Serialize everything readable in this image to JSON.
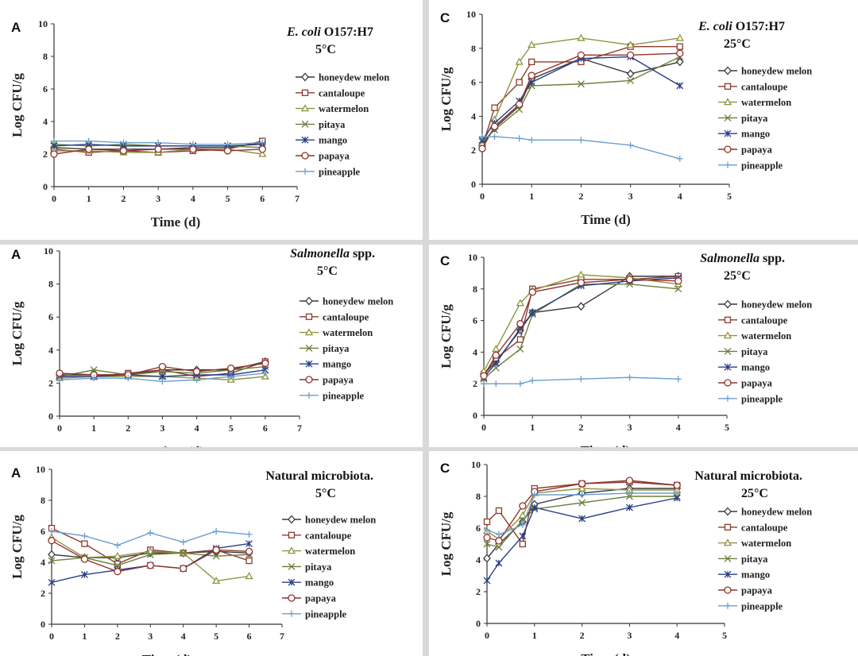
{
  "figure": {
    "legend_entries": [
      "honeydew melon",
      "cantaloupe",
      "watermelon",
      "pitaya",
      "mango",
      "papaya",
      "pineapple"
    ],
    "series_colors": {
      "honeydew melon": "#3a3a3a",
      "cantaloupe": "#8c3b2e",
      "watermelon": "#8f9440",
      "pitaya": "#6a7f3a",
      "mango": "#283f87",
      "papaya": "#92322c",
      "pineapple": "#6b9fcf"
    },
    "series_markers": {
      "honeydew melon": "diamond",
      "cantaloupe": "square",
      "watermelon": "triangle",
      "pitaya": "x",
      "mango": "xbar",
      "papaya": "circle",
      "pineapple": "plus"
    }
  },
  "chart_data": [
    {
      "type": "line",
      "panel_label": "A",
      "title_organism": "E. coli",
      "title_rest": " O157:H7",
      "title_italic": true,
      "title_temp": "5°C",
      "xlabel": "Time (d)",
      "ylabel": "Log CFU/g",
      "xlim": [
        0,
        7
      ],
      "ylim": [
        0,
        10
      ],
      "xticks": [
        0,
        1,
        2,
        3,
        4,
        5,
        6,
        7
      ],
      "yticks": [
        0,
        2,
        4,
        6,
        8,
        10
      ],
      "x": [
        0,
        1,
        2,
        3,
        4,
        5,
        6
      ],
      "series": [
        {
          "name": "honeydew melon",
          "values": [
            2.4,
            2.3,
            2.3,
            2.3,
            2.4,
            2.4,
            2.7
          ]
        },
        {
          "name": "cantaloupe",
          "values": [
            2.3,
            2.1,
            2.2,
            2.1,
            2.2,
            2.3,
            2.8
          ]
        },
        {
          "name": "watermelon",
          "values": [
            2.2,
            2.2,
            2.1,
            2.1,
            2.3,
            2.3,
            2.0
          ]
        },
        {
          "name": "pitaya",
          "values": [
            2.6,
            2.5,
            2.6,
            2.5,
            2.5,
            2.5,
            2.4
          ]
        },
        {
          "name": "mango",
          "values": [
            2.5,
            2.6,
            2.5,
            2.5,
            2.5,
            2.5,
            2.6
          ]
        },
        {
          "name": "papaya",
          "values": [
            2.0,
            2.3,
            2.2,
            2.3,
            2.3,
            2.2,
            2.3
          ]
        },
        {
          "name": "pineapple",
          "values": [
            2.8,
            2.8,
            2.7,
            2.7,
            2.6,
            2.6,
            2.7
          ]
        }
      ]
    },
    {
      "type": "line",
      "panel_label": "C",
      "title_organism": "E. coli",
      "title_rest": " O157:H7",
      "title_italic": true,
      "title_temp": "25°C",
      "xlabel": "Time (d)",
      "ylabel": "Log CFU/g",
      "xlim": [
        0,
        5
      ],
      "ylim": [
        0,
        10
      ],
      "xticks": [
        0,
        1,
        2,
        3,
        4,
        5
      ],
      "yticks": [
        0,
        2,
        4,
        6,
        8,
        10
      ],
      "x": [
        0,
        0.25,
        0.75,
        1,
        2,
        3,
        4
      ],
      "series": [
        {
          "name": "honeydew melon",
          "values": [
            2.3,
            3.3,
            4.6,
            6.2,
            7.4,
            6.5,
            7.2
          ]
        },
        {
          "name": "cantaloupe",
          "values": [
            2.2,
            4.5,
            6.0,
            7.2,
            7.2,
            8.1,
            8.1
          ]
        },
        {
          "name": "watermelon",
          "values": [
            2.4,
            3.8,
            7.2,
            8.2,
            8.6,
            8.2,
            8.6
          ]
        },
        {
          "name": "pitaya",
          "values": [
            2.5,
            3.2,
            4.4,
            5.8,
            5.9,
            6.1,
            7.5
          ]
        },
        {
          "name": "mango",
          "values": [
            2.6,
            3.6,
            4.9,
            6.0,
            7.4,
            7.5,
            5.8
          ]
        },
        {
          "name": "papaya",
          "values": [
            2.1,
            3.4,
            4.7,
            6.4,
            7.6,
            7.6,
            7.7
          ]
        },
        {
          "name": "pineapple",
          "values": [
            2.8,
            2.8,
            2.7,
            2.6,
            2.6,
            2.3,
            1.5
          ]
        }
      ]
    },
    {
      "type": "line",
      "panel_label": "A",
      "title_organism": "Salmonella",
      "title_rest": " spp.",
      "title_italic": true,
      "title_temp": "5°C",
      "xlabel": "Time (d)",
      "ylabel": "Log CFU/g",
      "xlim": [
        0,
        7
      ],
      "ylim": [
        0,
        10
      ],
      "xticks": [
        0,
        1,
        2,
        3,
        4,
        5,
        6,
        7
      ],
      "yticks": [
        0,
        2,
        4,
        6,
        8,
        10
      ],
      "x": [
        0,
        1,
        2,
        3,
        4,
        5,
        6
      ],
      "series": [
        {
          "name": "honeydew melon",
          "values": [
            2.5,
            2.5,
            2.5,
            2.8,
            2.8,
            2.8,
            3.3
          ]
        },
        {
          "name": "cantaloupe",
          "values": [
            2.4,
            2.4,
            2.6,
            2.8,
            2.4,
            2.6,
            3.3
          ]
        },
        {
          "name": "watermelon",
          "values": [
            2.3,
            2.4,
            2.4,
            2.4,
            2.3,
            2.2,
            2.4
          ]
        },
        {
          "name": "pitaya",
          "values": [
            2.4,
            2.8,
            2.5,
            2.7,
            2.6,
            2.8,
            3.0
          ]
        },
        {
          "name": "mango",
          "values": [
            2.4,
            2.4,
            2.5,
            2.4,
            2.5,
            2.5,
            2.8
          ]
        },
        {
          "name": "papaya",
          "values": [
            2.6,
            2.5,
            2.5,
            3.0,
            2.7,
            2.9,
            3.2
          ]
        },
        {
          "name": "pineapple",
          "values": [
            2.2,
            2.3,
            2.3,
            2.1,
            2.2,
            2.4,
            2.6
          ]
        }
      ]
    },
    {
      "type": "line",
      "panel_label": "C",
      "title_organism": "Salmonella",
      "title_rest": " spp.",
      "title_italic": true,
      "title_temp": "25°C",
      "xlabel": "Time (d)",
      "ylabel": "Log CFU/g",
      "xlim": [
        0,
        5
      ],
      "ylim": [
        0,
        10
      ],
      "xticks": [
        0,
        1,
        2,
        3,
        4,
        5
      ],
      "yticks": [
        0,
        2,
        4,
        6,
        8,
        10
      ],
      "x": [
        0,
        0.25,
        0.75,
        1,
        2,
        3,
        4
      ],
      "series": [
        {
          "name": "honeydew melon",
          "values": [
            2.6,
            3.4,
            5.4,
            6.5,
            6.9,
            8.8,
            8.8
          ]
        },
        {
          "name": "cantaloupe",
          "values": [
            2.6,
            3.6,
            4.8,
            8.0,
            8.6,
            8.6,
            8.8
          ]
        },
        {
          "name": "watermelon",
          "values": [
            2.8,
            4.2,
            7.1,
            7.9,
            8.9,
            8.7,
            8.3
          ]
        },
        {
          "name": "pitaya",
          "values": [
            2.3,
            3.0,
            4.2,
            6.4,
            8.3,
            8.3,
            8.0
          ]
        },
        {
          "name": "mango",
          "values": [
            2.4,
            3.3,
            5.5,
            6.5,
            8.2,
            8.5,
            8.7
          ]
        },
        {
          "name": "papaya",
          "values": [
            2.5,
            3.8,
            5.8,
            7.8,
            8.4,
            8.6,
            8.5
          ]
        },
        {
          "name": "pineapple",
          "values": [
            2.0,
            2.0,
            2.0,
            2.2,
            2.3,
            2.4,
            2.3
          ]
        }
      ]
    },
    {
      "type": "line",
      "panel_label": "A",
      "title_organism": "Natural microbiota.",
      "title_rest": "",
      "title_italic": false,
      "title_temp": "5°C",
      "xlabel": "Time (d)",
      "ylabel": "Log CFU/g",
      "xlim": [
        0,
        7
      ],
      "ylim": [
        0,
        10
      ],
      "xticks": [
        0,
        1,
        2,
        3,
        4,
        5,
        6,
        7
      ],
      "yticks": [
        0,
        2,
        4,
        6,
        8,
        10
      ],
      "x": [
        0,
        1,
        2,
        3,
        4,
        5,
        6
      ],
      "series": [
        {
          "name": "honeydew melon",
          "values": [
            4.5,
            4.3,
            4.3,
            4.6,
            4.6,
            4.7,
            4.6
          ]
        },
        {
          "name": "cantaloupe",
          "values": [
            6.2,
            5.2,
            3.9,
            4.8,
            4.6,
            4.8,
            4.1
          ]
        },
        {
          "name": "watermelon",
          "values": [
            5.6,
            4.3,
            4.4,
            4.7,
            4.6,
            2.8,
            3.1
          ]
        },
        {
          "name": "pitaya",
          "values": [
            4.1,
            4.3,
            3.8,
            4.5,
            4.6,
            4.4,
            4.5
          ]
        },
        {
          "name": "mango",
          "values": [
            2.7,
            3.2,
            3.5,
            3.8,
            3.6,
            4.9,
            5.2
          ]
        },
        {
          "name": "papaya",
          "values": [
            5.4,
            4.2,
            3.4,
            3.8,
            3.6,
            4.8,
            4.7
          ]
        },
        {
          "name": "pineapple",
          "values": [
            6.0,
            5.7,
            5.1,
            5.9,
            5.3,
            6.0,
            5.8
          ]
        }
      ]
    },
    {
      "type": "line",
      "panel_label": "C",
      "title_organism": "Natural microbiota.",
      "title_rest": "",
      "title_italic": false,
      "title_temp": "25°C",
      "xlabel": "Time (d)",
      "ylabel": "Log CFU/g",
      "xlim": [
        0,
        5
      ],
      "ylim": [
        0,
        10
      ],
      "xticks": [
        0,
        1,
        2,
        3,
        4,
        5
      ],
      "yticks": [
        0,
        2,
        4,
        6,
        8,
        10
      ],
      "x": [
        0,
        0.25,
        0.75,
        1,
        2,
        3,
        4
      ],
      "series": [
        {
          "name": "honeydew melon",
          "values": [
            4.1,
            5.0,
            6.4,
            7.5,
            8.2,
            8.5,
            8.5
          ]
        },
        {
          "name": "cantaloupe",
          "values": [
            6.4,
            7.1,
            5.0,
            8.5,
            8.8,
            8.9,
            8.7
          ]
        },
        {
          "name": "watermelon",
          "values": [
            5.8,
            5.3,
            6.8,
            8.2,
            8.5,
            8.4,
            8.4
          ]
        },
        {
          "name": "pitaya",
          "values": [
            5.0,
            4.8,
            6.5,
            7.2,
            7.6,
            8.0,
            8.0
          ]
        },
        {
          "name": "mango",
          "values": [
            2.7,
            3.8,
            5.5,
            7.3,
            6.6,
            7.3,
            7.9
          ]
        },
        {
          "name": "papaya",
          "values": [
            5.4,
            5.2,
            7.4,
            8.3,
            8.8,
            9.0,
            8.7
          ]
        },
        {
          "name": "pineapple",
          "values": [
            5.9,
            5.6,
            6.2,
            8.1,
            8.1,
            8.2,
            8.2
          ]
        }
      ]
    }
  ]
}
